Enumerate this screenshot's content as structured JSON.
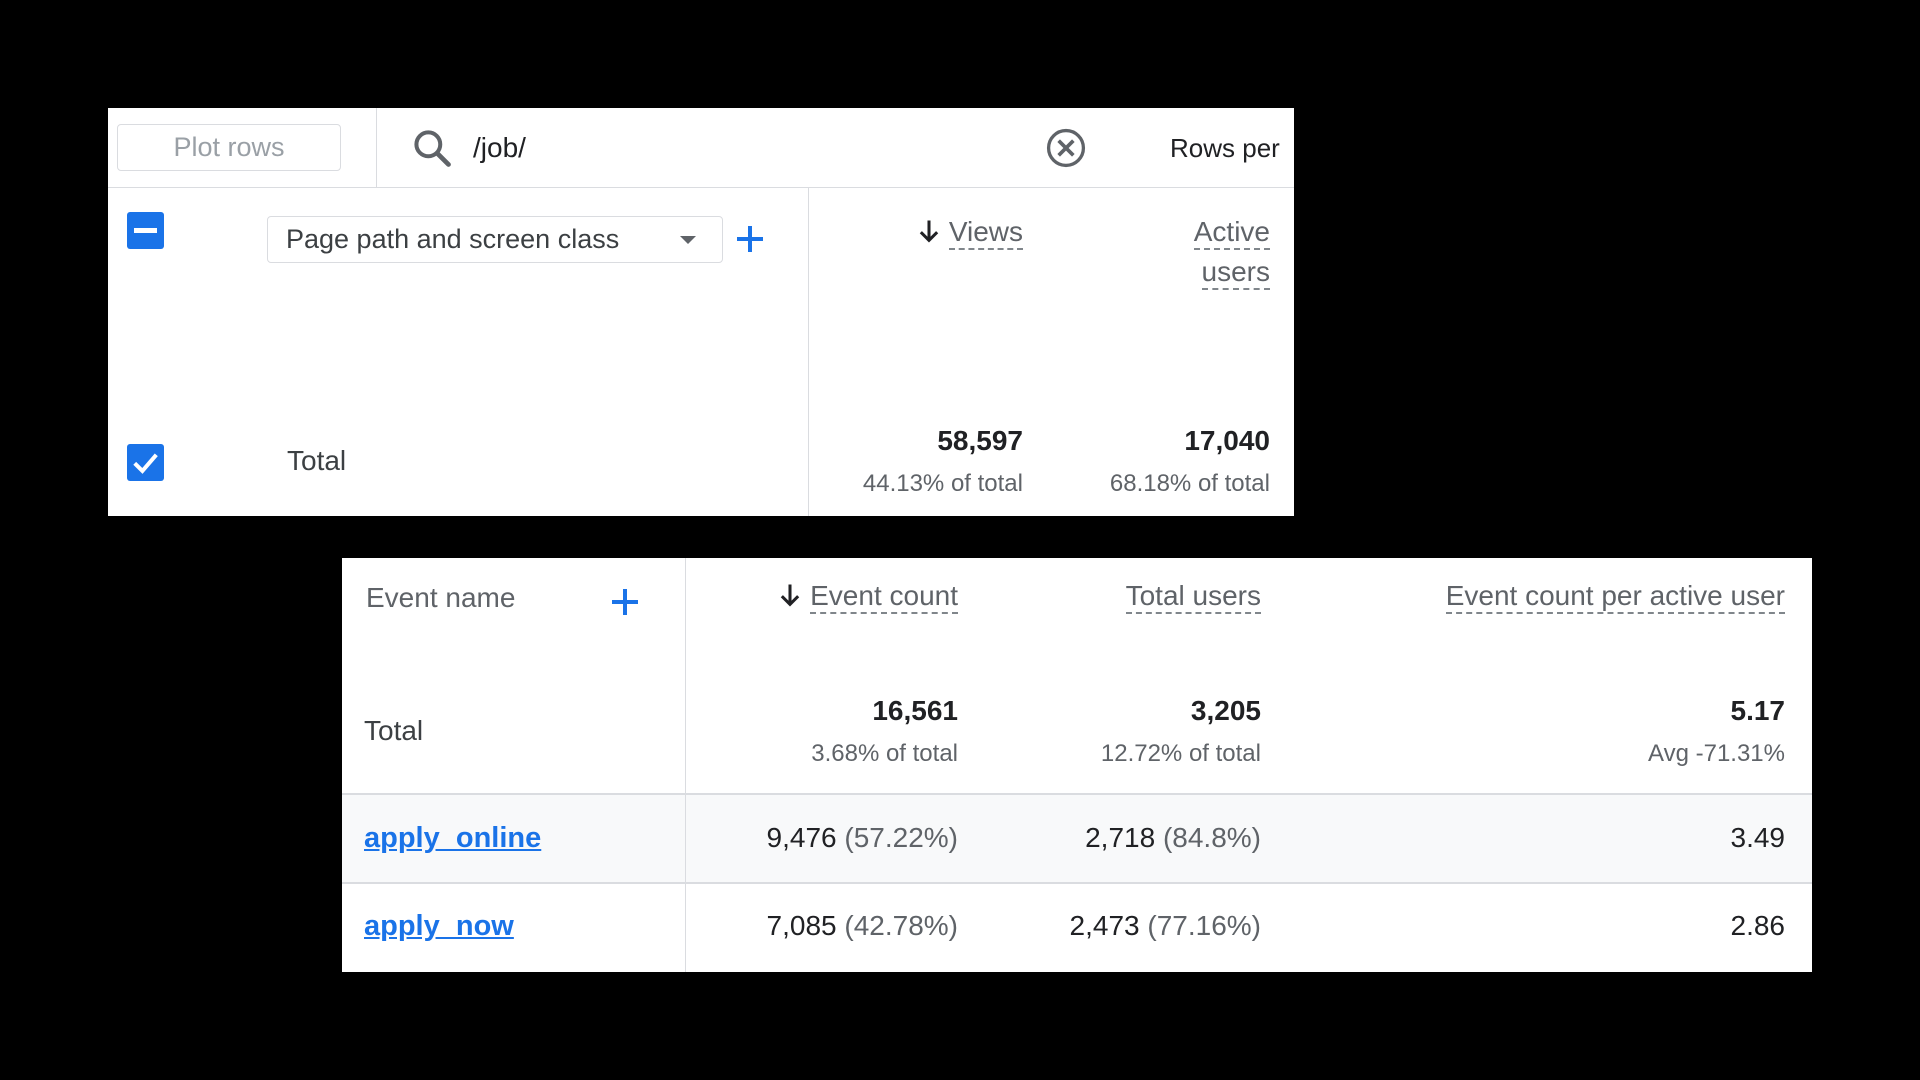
{
  "panel1": {
    "toolbar": {
      "plot_rows_label": "Plot rows",
      "search_value": "/job/",
      "rows_per_label": "Rows per"
    },
    "dimension_select": "Page path and screen class",
    "columns": [
      {
        "label": "Views",
        "sorted": true
      },
      {
        "label_line1": "Active",
        "label_line2": "users"
      }
    ],
    "total": {
      "label": "Total",
      "views": "58,597",
      "views_pct": "44.13% of total",
      "active_users": "17,040",
      "active_users_pct": "68.18% of total"
    }
  },
  "panel2": {
    "dimension_header": "Event name",
    "columns": {
      "event_count": "Event count",
      "total_users": "Total users",
      "per_active_user": "Event count per active user"
    },
    "total": {
      "label": "Total",
      "event_count": "16,561",
      "event_count_pct": "3.68% of total",
      "total_users": "3,205",
      "total_users_pct": "12.72% of total",
      "per_active_user": "5.17",
      "per_active_user_sub": "Avg -71.31%"
    },
    "rows": [
      {
        "name": "apply_online",
        "event_count": "9,476",
        "event_count_pct": "(57.22%)",
        "total_users": "2,718",
        "total_users_pct": "(84.8%)",
        "per_active_user": "3.49"
      },
      {
        "name": "apply_now",
        "event_count": "7,085",
        "event_count_pct": "(42.78%)",
        "total_users": "2,473",
        "total_users_pct": "(77.16%)",
        "per_active_user": "2.86"
      }
    ]
  },
  "colors": {
    "accent": "#1a73e8",
    "background": "#000000",
    "panel": "#ffffff",
    "divider": "#dadce0",
    "row_highlight": "#f8f9fa"
  }
}
